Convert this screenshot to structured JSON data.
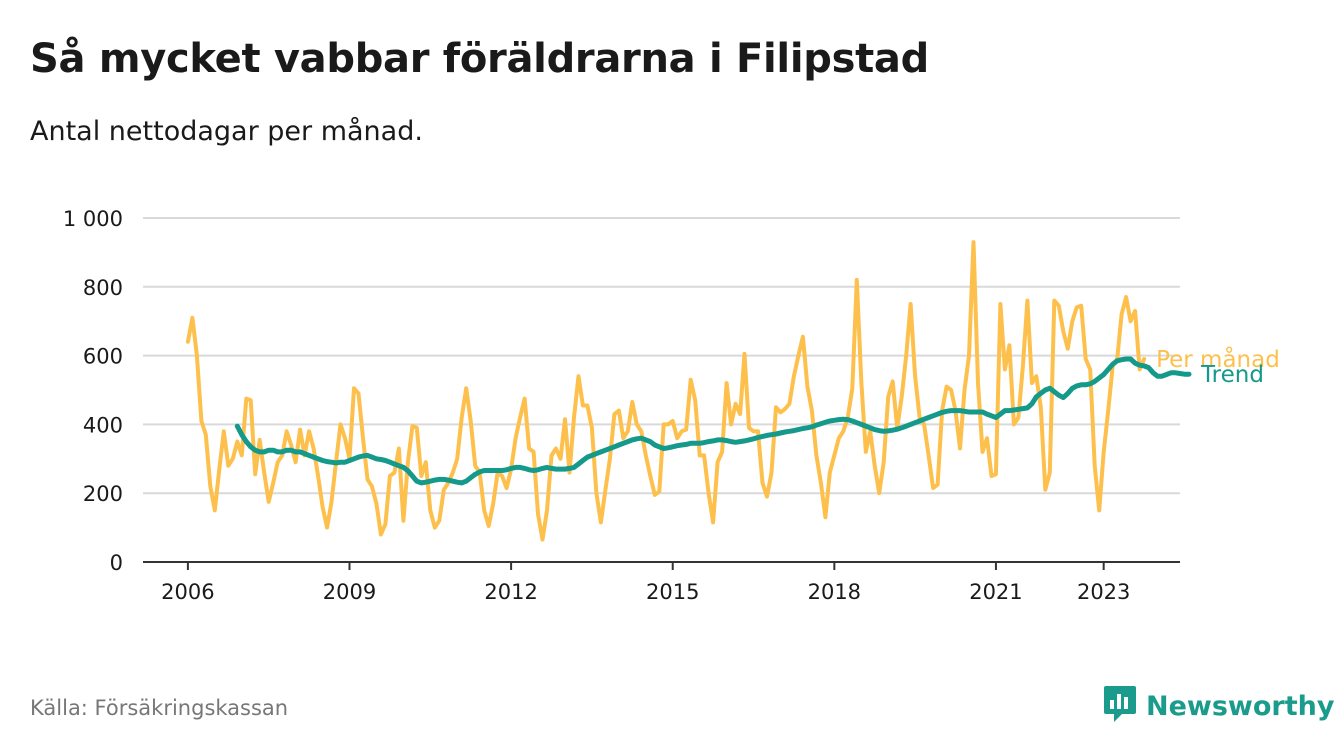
{
  "header": {
    "title": "Så mycket vabbar föräldrarna i Filipstad",
    "subtitle": "Antal nettodagar per månad."
  },
  "footer": {
    "source": "Källa: Försäkringskassan",
    "brand": "Newsworthy"
  },
  "colors": {
    "monthly": "#fdc04c",
    "trend": "#14998a",
    "grid": "#d9d9d9",
    "axis": "#333333",
    "brand": "#1a9b8b"
  },
  "chart_data": {
    "type": "line",
    "title": "Så mycket vabbar föräldrarna i Filipstad",
    "subtitle": "Antal nettodagar per månad.",
    "xlabel": "",
    "ylabel": "",
    "x_range": [
      "2005-03",
      "2024-06"
    ],
    "ylim": [
      0,
      1000
    ],
    "y_ticks": [
      {
        "value": 0,
        "label": "0"
      },
      {
        "value": 200,
        "label": "200"
      },
      {
        "value": 400,
        "label": "400"
      },
      {
        "value": 600,
        "label": "600"
      },
      {
        "value": 800,
        "label": "800"
      },
      {
        "value": 1000,
        "label": "1 000"
      }
    ],
    "x_ticks": [
      {
        "date": "2006-01",
        "label": "2006"
      },
      {
        "date": "2009-01",
        "label": "2009"
      },
      {
        "date": "2012-01",
        "label": "2012"
      },
      {
        "date": "2015-01",
        "label": "2015"
      },
      {
        "date": "2018-01",
        "label": "2018"
      },
      {
        "date": "2021-01",
        "label": "2021"
      },
      {
        "date": "2023-01",
        "label": "2023"
      }
    ],
    "grid": true,
    "legend_placement": "end-of-line labels",
    "series": [
      {
        "name": "Per månad",
        "start": "2006-01",
        "values": [
          640,
          710,
          600,
          410,
          370,
          220,
          150,
          270,
          380,
          280,
          300,
          350,
          310,
          475,
          470,
          255,
          355,
          260,
          175,
          230,
          290,
          310,
          380,
          340,
          290,
          385,
          310,
          380,
          330,
          250,
          160,
          100,
          175,
          290,
          400,
          360,
          300,
          505,
          490,
          360,
          240,
          220,
          170,
          80,
          110,
          250,
          260,
          330,
          120,
          290,
          395,
          390,
          250,
          290,
          150,
          100,
          120,
          210,
          230,
          260,
          300,
          420,
          505,
          410,
          280,
          260,
          150,
          105,
          170,
          260,
          250,
          215,
          270,
          360,
          420,
          475,
          330,
          320,
          140,
          65,
          150,
          310,
          330,
          300,
          415,
          260,
          420,
          540,
          455,
          455,
          390,
          200,
          115,
          210,
          300,
          430,
          440,
          360,
          380,
          465,
          400,
          380,
          310,
          250,
          195,
          205,
          400,
          400,
          410,
          360,
          380,
          385,
          530,
          470,
          310,
          310,
          200,
          115,
          290,
          320,
          520,
          400,
          460,
          430,
          605,
          390,
          380,
          380,
          230,
          190,
          260,
          450,
          435,
          445,
          460,
          540,
          600,
          655,
          510,
          440,
          310,
          230,
          130,
          260,
          310,
          360,
          380,
          420,
          505,
          820,
          525,
          320,
          380,
          280,
          200,
          290,
          480,
          525,
          390,
          480,
          600,
          750,
          540,
          420,
          400,
          310,
          215,
          225,
          440,
          510,
          500,
          440,
          330,
          500,
          600,
          930,
          520,
          320,
          360,
          250,
          255,
          750,
          560,
          630,
          400,
          420,
          570,
          760,
          520,
          540,
          450,
          210,
          260,
          760,
          745,
          670,
          620,
          700,
          740,
          745,
          590,
          560,
          280,
          150,
          320,
          440,
          570,
          590,
          720,
          770,
          700,
          730,
          560,
          590
        ]
      },
      {
        "name": "Trend",
        "start": "2006-12",
        "values": [
          395,
          370,
          350,
          335,
          325,
          320,
          320,
          325,
          325,
          320,
          320,
          325,
          325,
          320,
          320,
          315,
          310,
          305,
          300,
          295,
          292,
          290,
          288,
          290,
          290,
          295,
          300,
          305,
          308,
          310,
          305,
          300,
          298,
          295,
          290,
          285,
          280,
          275,
          265,
          250,
          235,
          230,
          232,
          235,
          238,
          240,
          240,
          238,
          235,
          232,
          230,
          235,
          245,
          255,
          262,
          266,
          266,
          266,
          266,
          266,
          268,
          272,
          275,
          275,
          272,
          268,
          266,
          268,
          272,
          275,
          272,
          270,
          270,
          270,
          272,
          275,
          285,
          295,
          305,
          310,
          315,
          320,
          325,
          330,
          335,
          340,
          345,
          350,
          355,
          358,
          360,
          355,
          350,
          340,
          335,
          330,
          332,
          335,
          338,
          340,
          342,
          345,
          345,
          345,
          347,
          350,
          352,
          355,
          355,
          353,
          350,
          348,
          350,
          352,
          355,
          358,
          362,
          365,
          368,
          370,
          372,
          375,
          378,
          380,
          382,
          385,
          388,
          390,
          393,
          398,
          402,
          406,
          410,
          412,
          414,
          415,
          414,
          410,
          405,
          400,
          395,
          390,
          385,
          382,
          380,
          381,
          383,
          386,
          390,
          395,
          400,
          405,
          410,
          415,
          420,
          425,
          430,
          435,
          438,
          440,
          440,
          440,
          438,
          436,
          436,
          436,
          436,
          430,
          425,
          420,
          430,
          440,
          440,
          442,
          444,
          446,
          448,
          460,
          480,
          490,
          500,
          505,
          495,
          485,
          478,
          490,
          505,
          512,
          515,
          515,
          518,
          525,
          535,
          545,
          560,
          575,
          585,
          588,
          590,
          590,
          578,
          572,
          570,
          565,
          550,
          540,
          540,
          545,
          550,
          550,
          548,
          546,
          546
        ]
      }
    ]
  }
}
